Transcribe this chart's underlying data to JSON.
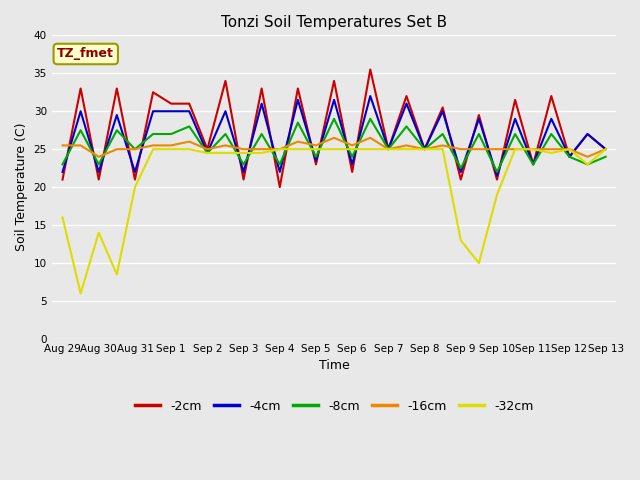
{
  "title": "Tonzi Soil Temperatures Set B",
  "xlabel": "Time",
  "ylabel": "Soil Temperature (C)",
  "annotation": "TZ_fmet",
  "xlim": [
    -0.3,
    15.3
  ],
  "ylim": [
    0,
    40
  ],
  "yticks": [
    0,
    5,
    10,
    15,
    20,
    25,
    30,
    35,
    40
  ],
  "xtick_labels": [
    "Aug 29",
    "Aug 30",
    "Aug 31",
    "Sep 1",
    "Sep 2",
    "Sep 3",
    "Sep 4",
    "Sep 5",
    "Sep 6",
    "Sep 7",
    "Sep 8",
    "Sep 9",
    "Sep 10",
    "Sep 11",
    "Sep 12",
    "Sep 13"
  ],
  "xtick_positions": [
    0,
    1,
    2,
    3,
    4,
    5,
    6,
    7,
    8,
    9,
    10,
    11,
    12,
    13,
    14,
    15
  ],
  "series": {
    "-2cm": {
      "color": "#cc0000",
      "x": [
        0,
        0.5,
        1,
        1.5,
        2,
        2.5,
        3,
        3.5,
        4,
        4.5,
        5,
        5.5,
        6,
        6.5,
        7,
        7.5,
        8,
        8.5,
        9,
        9.5,
        10,
        10.5,
        11,
        11.5,
        12,
        12.5,
        13,
        13.5,
        14,
        14.5,
        15
      ],
      "y": [
        21,
        33,
        21,
        33,
        21,
        32.5,
        31,
        31,
        25,
        34,
        21,
        33,
        20,
        33,
        23,
        34,
        22,
        35.5,
        25,
        32,
        25,
        30.5,
        21,
        29.5,
        21,
        31.5,
        23,
        32,
        24,
        27,
        25
      ]
    },
    "-4cm": {
      "color": "#0000cc",
      "x": [
        0,
        0.5,
        1,
        1.5,
        2,
        2.5,
        3,
        3.5,
        4,
        4.5,
        5,
        5.5,
        6,
        6.5,
        7,
        7.5,
        8,
        8.5,
        9,
        9.5,
        10,
        10.5,
        11,
        11.5,
        12,
        12.5,
        13,
        13.5,
        14,
        14.5,
        15
      ],
      "y": [
        22,
        30,
        22,
        29.5,
        22,
        30,
        30,
        30,
        24.5,
        30,
        22,
        31,
        22,
        31.5,
        23.5,
        31.5,
        23,
        32,
        25,
        31,
        25,
        30,
        22,
        29,
        21.5,
        29,
        23,
        29,
        24,
        27,
        25
      ]
    },
    "-8cm": {
      "color": "#00aa00",
      "x": [
        0,
        0.5,
        1,
        1.5,
        2,
        2.5,
        3,
        3.5,
        4,
        4.5,
        5,
        5.5,
        6,
        6.5,
        7,
        7.5,
        8,
        8.5,
        9,
        9.5,
        10,
        10.5,
        11,
        11.5,
        12,
        12.5,
        13,
        13.5,
        14,
        14.5,
        15
      ],
      "y": [
        23,
        27.5,
        23,
        27.5,
        25,
        27,
        27,
        28,
        24.5,
        27,
        23,
        27,
        23,
        28.5,
        24,
        29,
        24,
        29,
        25,
        28,
        25,
        27,
        22.5,
        27,
        22,
        27,
        23,
        27,
        24,
        23,
        24
      ]
    },
    "-16cm": {
      "color": "#ee8800",
      "x": [
        0,
        0.5,
        1,
        1.5,
        2,
        2.5,
        3,
        3.5,
        4,
        4.5,
        5,
        5.5,
        6,
        6.5,
        7,
        7.5,
        8,
        8.5,
        9,
        9.5,
        10,
        10.5,
        11,
        11.5,
        12,
        12.5,
        13,
        13.5,
        14,
        14.5,
        15
      ],
      "y": [
        25.5,
        25.5,
        24,
        25,
        25,
        25.5,
        25.5,
        26,
        25,
        25.5,
        25,
        25,
        25,
        26,
        25.5,
        26.5,
        25.5,
        26.5,
        25,
        25.5,
        25,
        25.5,
        25,
        25,
        25,
        25,
        25,
        25,
        25,
        24,
        25
      ]
    },
    "-32cm": {
      "color": "#dddd00",
      "x": [
        0,
        0.5,
        1,
        1.5,
        2,
        2.5,
        3,
        3.5,
        4,
        4.5,
        5,
        5.5,
        6,
        6.5,
        7,
        7.5,
        8,
        8.5,
        9,
        9.5,
        10,
        10.5,
        11,
        11.5,
        12,
        12.5,
        13,
        13.5,
        14,
        14.5,
        15
      ],
      "y": [
        16,
        6,
        14,
        8.5,
        20,
        25,
        25,
        25,
        24.5,
        24.5,
        24.5,
        24.5,
        25,
        25,
        25,
        25,
        25,
        25,
        25,
        25,
        25,
        25,
        13,
        10,
        19,
        25,
        25,
        24.5,
        25,
        23,
        25
      ]
    }
  },
  "legend_items": [
    {
      "label": "-2cm",
      "color": "#cc0000"
    },
    {
      "label": "-4cm",
      "color": "#0000cc"
    },
    {
      "label": "-8cm",
      "color": "#00aa00"
    },
    {
      "label": "-16cm",
      "color": "#ee8800"
    },
    {
      "label": "-32cm",
      "color": "#dddd00"
    }
  ],
  "fig_facecolor": "#e8e8e8",
  "ax_facecolor": "#e8e8e8",
  "grid_color": "#ffffff",
  "title_fontsize": 11,
  "axis_label_fontsize": 9,
  "tick_fontsize": 7.5,
  "legend_fontsize": 9,
  "linewidth": 1.5
}
